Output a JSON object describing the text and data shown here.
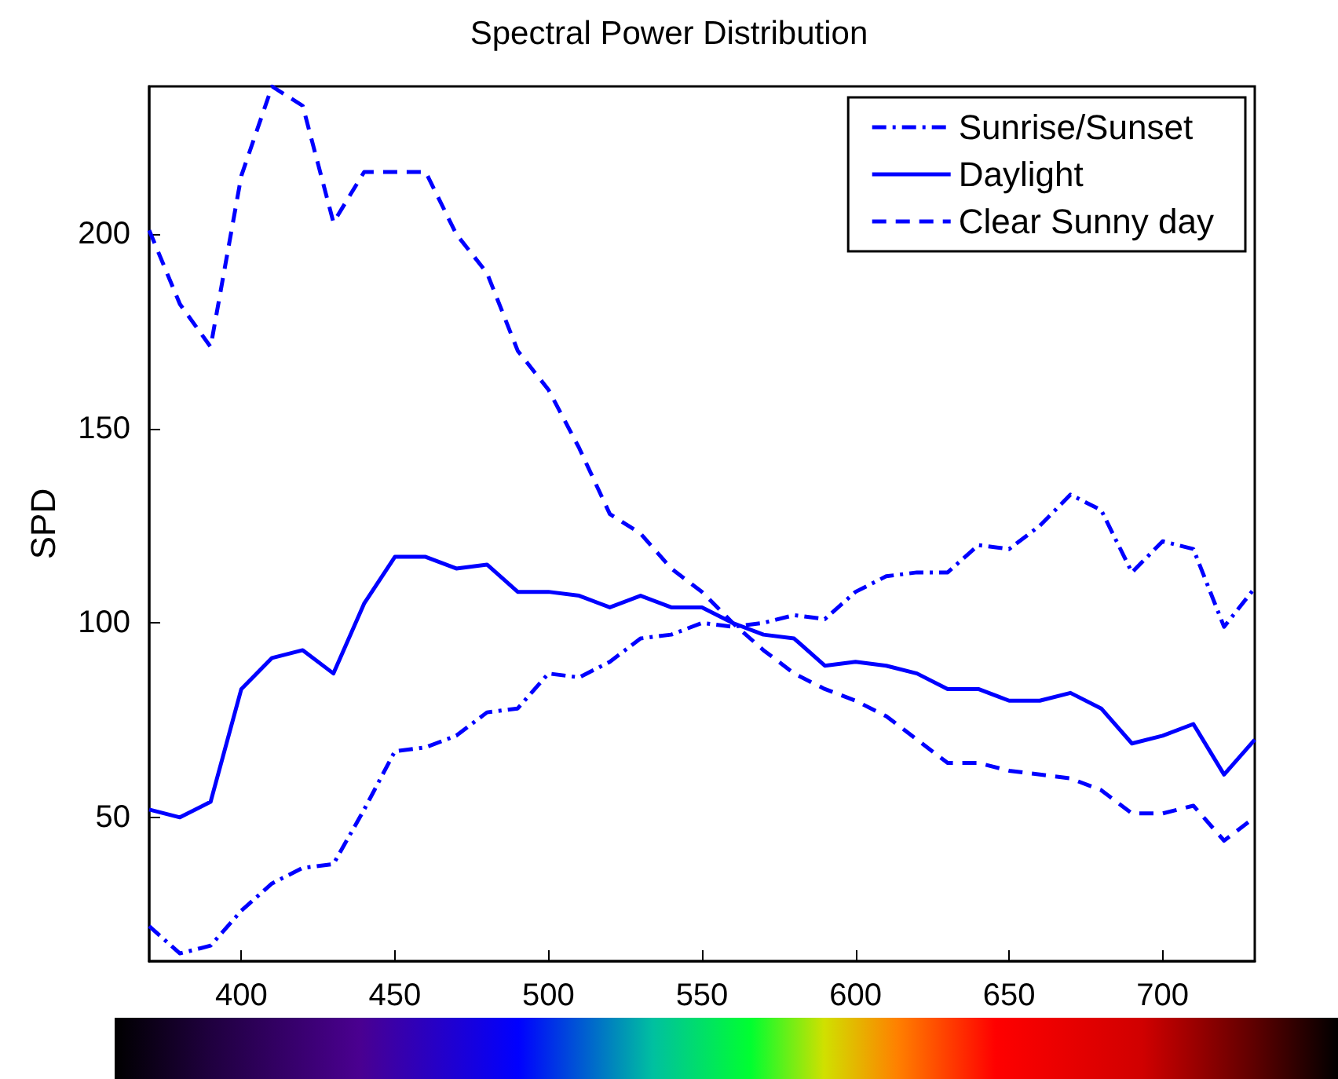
{
  "chart_data": {
    "type": "line",
    "title": "Spectral Power Distribution",
    "ylabel": "SPD",
    "x": [
      370,
      380,
      390,
      400,
      410,
      420,
      430,
      440,
      450,
      460,
      470,
      480,
      490,
      500,
      510,
      520,
      530,
      540,
      550,
      560,
      570,
      580,
      590,
      600,
      610,
      620,
      630,
      640,
      650,
      660,
      670,
      680,
      690,
      700,
      710,
      720,
      730
    ],
    "series": [
      {
        "name": "Sunrise/Sunset",
        "color": "#0000ff",
        "line_style": "dashdot",
        "values": [
          22,
          15,
          17,
          26,
          33,
          37,
          38,
          52,
          67,
          68,
          71,
          77,
          78,
          87,
          86,
          90,
          96,
          97,
          100,
          99,
          100,
          102,
          101,
          108,
          112,
          113,
          113,
          120,
          119,
          125,
          133,
          129,
          113,
          121,
          119,
          99,
          109
        ]
      },
      {
        "name": "Daylight",
        "color": "#0000ff",
        "line_style": "solid",
        "values": [
          52,
          50,
          54,
          83,
          91,
          93,
          87,
          105,
          117,
          117,
          114,
          115,
          108,
          108,
          107,
          104,
          107,
          104,
          104,
          100,
          97,
          96,
          89,
          90,
          89,
          87,
          83,
          83,
          80,
          80,
          82,
          78,
          69,
          71,
          74,
          61,
          70
        ]
      },
      {
        "name": "Clear Sunny day",
        "color": "#0000ff",
        "line_style": "dashed",
        "values": [
          201,
          182,
          171,
          215,
          238,
          233,
          203,
          216,
          216,
          216,
          200,
          190,
          170,
          160,
          145,
          128,
          123,
          114,
          108,
          100,
          93,
          87,
          83,
          80,
          76,
          70,
          64,
          64,
          62,
          61,
          60,
          57,
          51,
          51,
          53,
          44,
          50
        ]
      }
    ],
    "xlim": [
      370,
      730
    ],
    "xticks": [
      400,
      450,
      500,
      550,
      600,
      650,
      700
    ],
    "ylim": [
      13,
      238
    ],
    "yticks": [
      50,
      100,
      150,
      200
    ],
    "grid": false,
    "legend": "top right",
    "marker": "none"
  }
}
